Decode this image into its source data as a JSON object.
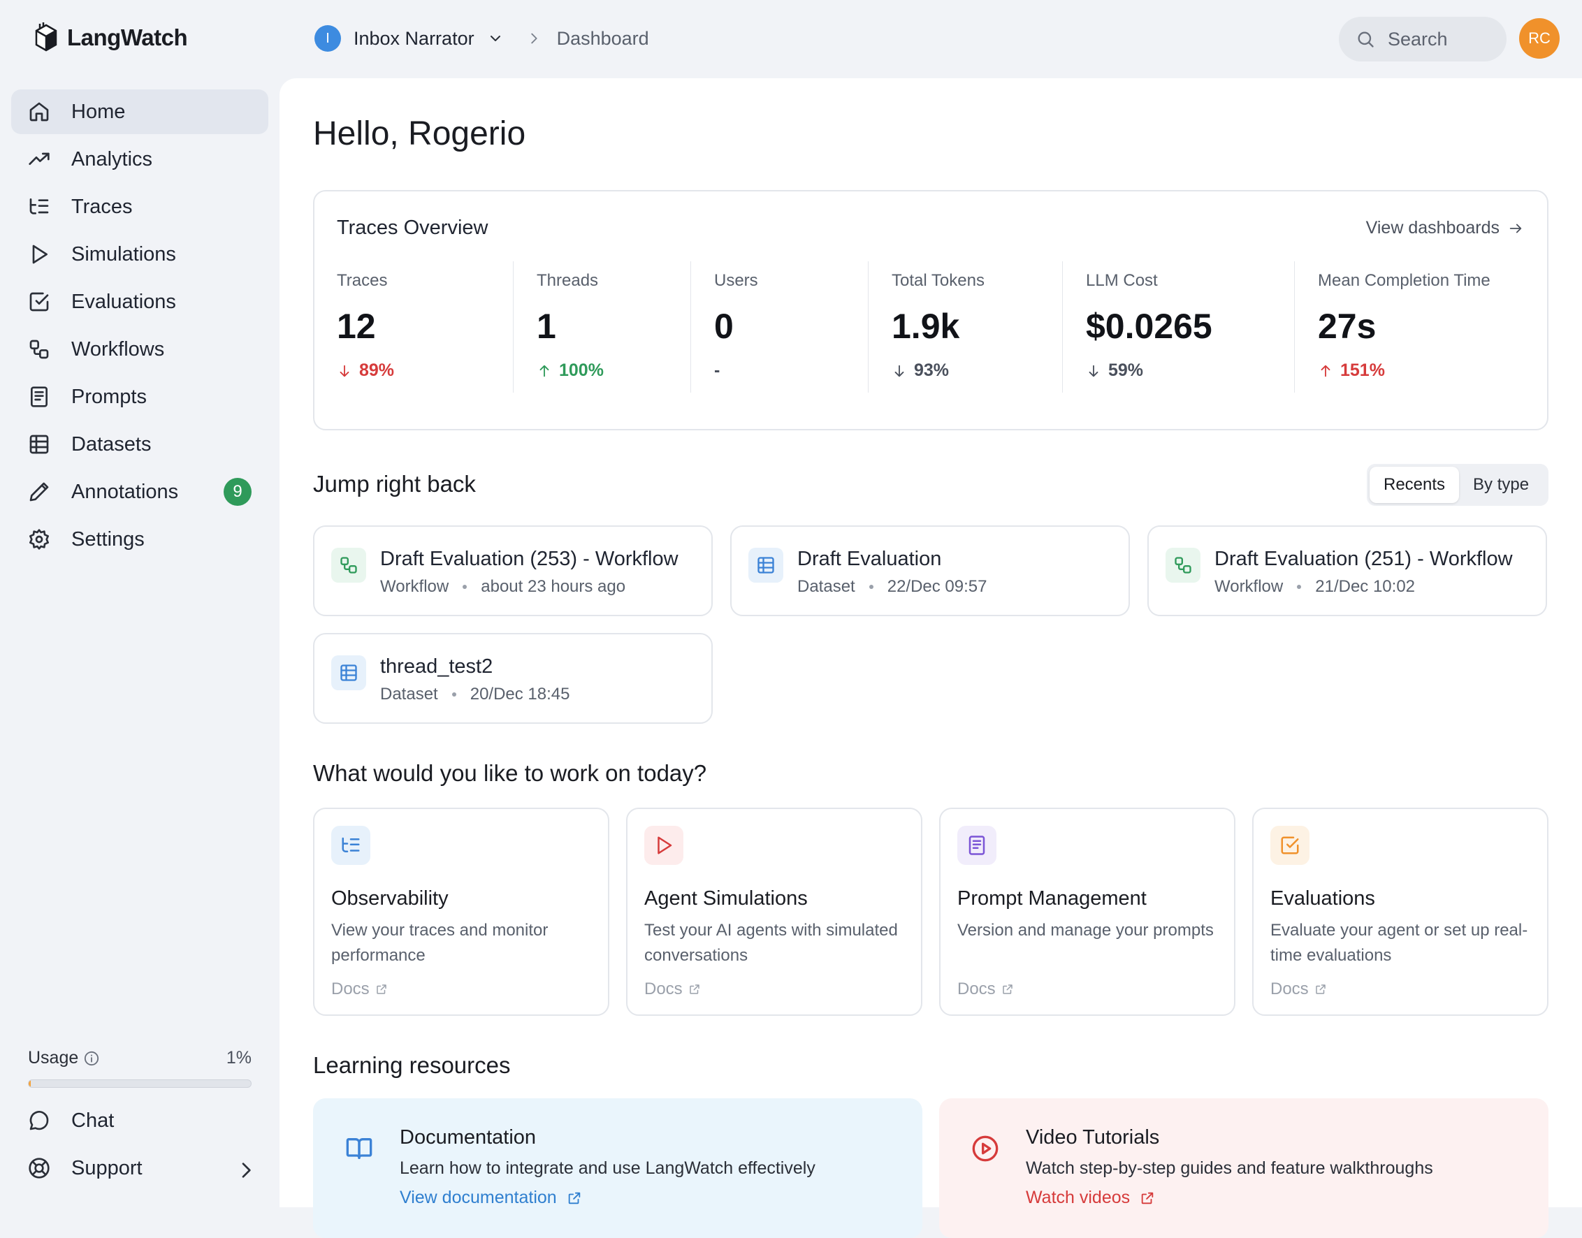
{
  "app": {
    "name": "LangWatch"
  },
  "sidebar": {
    "items": [
      {
        "label": "Home",
        "icon": "home-icon",
        "active": true
      },
      {
        "label": "Analytics",
        "icon": "trending-up-icon"
      },
      {
        "label": "Traces",
        "icon": "list-tree-icon"
      },
      {
        "label": "Simulations",
        "icon": "play-icon"
      },
      {
        "label": "Evaluations",
        "icon": "check-square-icon"
      },
      {
        "label": "Workflows",
        "icon": "workflow-icon"
      },
      {
        "label": "Prompts",
        "icon": "book-icon"
      },
      {
        "label": "Datasets",
        "icon": "table-icon"
      },
      {
        "label": "Annotations",
        "icon": "pencil-icon",
        "badge": "9"
      },
      {
        "label": "Settings",
        "icon": "gear-icon"
      }
    ],
    "usage": {
      "label": "Usage",
      "percent_label": "1%",
      "fraction": 0.01
    },
    "bottom": [
      {
        "label": "Chat",
        "icon": "chat-icon"
      },
      {
        "label": "Support",
        "icon": "lifebuoy-icon"
      }
    ]
  },
  "topbar": {
    "project_initial": "I",
    "project_name": "Inbox Narrator",
    "breadcrumb": "Dashboard",
    "search_placeholder": "Search",
    "user_initials": "RC"
  },
  "main": {
    "greeting": "Hello, Rogerio",
    "overview": {
      "title": "Traces Overview",
      "view_link": "View dashboards",
      "stats": [
        {
          "label": "Traces",
          "value": "12",
          "delta": "89%",
          "direction": "down",
          "color": "#d63b3b"
        },
        {
          "label": "Threads",
          "value": "1",
          "delta": "100%",
          "direction": "up",
          "color": "#2f9a5a"
        },
        {
          "label": "Users",
          "value": "0",
          "delta": "-",
          "direction": "none",
          "color": "#4a505c"
        },
        {
          "label": "Total Tokens",
          "value": "1.9k",
          "delta": "93%",
          "direction": "down",
          "color": "#4a505c"
        },
        {
          "label": "LLM Cost",
          "value": "$0.0265",
          "delta": "59%",
          "direction": "down",
          "color": "#4a505c"
        },
        {
          "label": "Mean Completion Time",
          "value": "27s",
          "delta": "151%",
          "direction": "up",
          "color": "#d63b3b"
        }
      ]
    },
    "jump": {
      "title": "Jump right back",
      "toggle": [
        "Recents",
        "By type"
      ],
      "items": [
        {
          "title": "Draft Evaluation (253) - Workflow",
          "type": "Workflow",
          "time": "about 23 hours ago",
          "icon": "workflow-icon"
        },
        {
          "title": "Draft Evaluation",
          "type": "Dataset",
          "time": "22/Dec 09:57",
          "icon": "table-icon"
        },
        {
          "title": "Draft Evaluation (251) - Workflow",
          "type": "Workflow",
          "time": "21/Dec 10:02",
          "icon": "workflow-icon"
        },
        {
          "title": "thread_test2",
          "type": "Dataset",
          "time": "20/Dec 18:45",
          "icon": "table-icon"
        }
      ]
    },
    "work": {
      "title": "What would you like to work on today?",
      "cards": [
        {
          "title": "Observability",
          "desc": "View your traces and monitor performance",
          "docs": "Docs",
          "icon": "list-tree-icon"
        },
        {
          "title": "Agent Simulations",
          "desc": "Test your AI agents with simulated conversations",
          "docs": "Docs",
          "icon": "play-icon"
        },
        {
          "title": "Prompt Management",
          "desc": "Version and manage your prompts",
          "docs": "Docs",
          "icon": "book-icon"
        },
        {
          "title": "Evaluations",
          "desc": "Evaluate your agent or set up real-time evaluations",
          "docs": "Docs",
          "icon": "check-square-icon"
        }
      ]
    },
    "learning": {
      "title": "Learning resources",
      "cards": [
        {
          "title": "Documentation",
          "desc": "Learn how to integrate and use LangWatch effectively",
          "link": "View documentation",
          "icon": "open-book-icon"
        },
        {
          "title": "Video Tutorials",
          "desc": "Watch step-by-step guides and feature walkthroughs",
          "link": "Watch videos",
          "icon": "play-circle-icon"
        }
      ]
    }
  }
}
